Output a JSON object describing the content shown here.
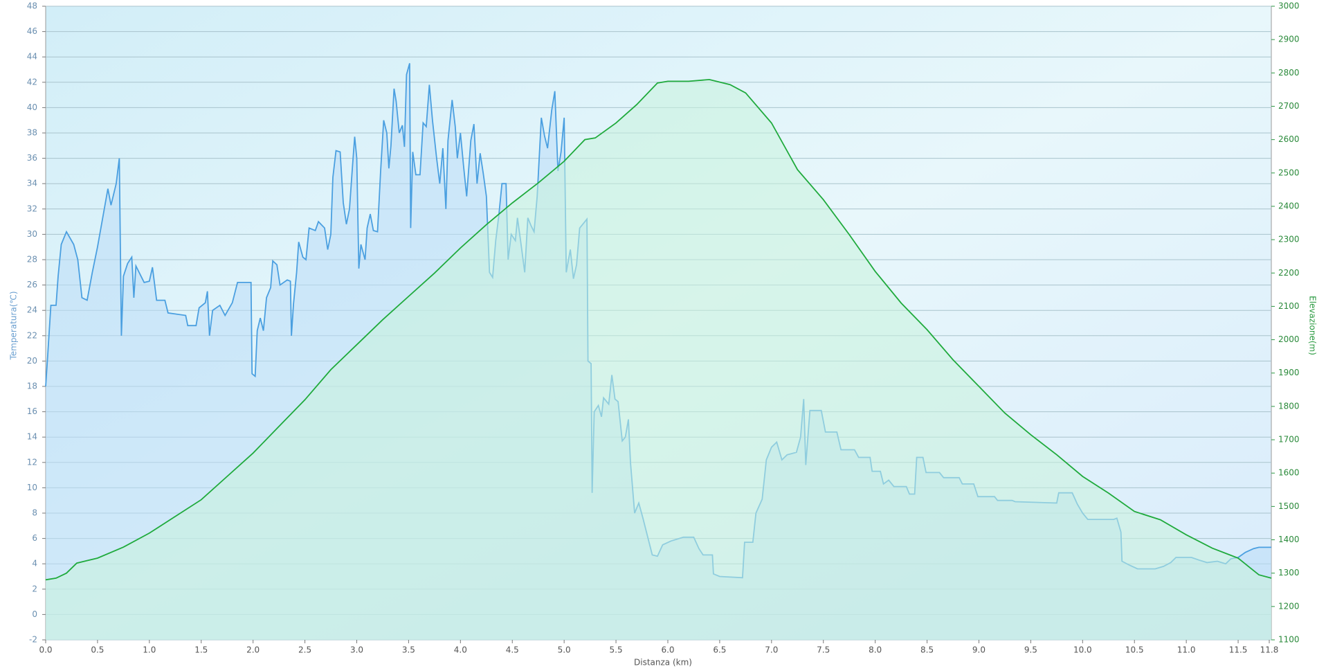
{
  "chart_data": {
    "type": "line",
    "x_label": "Distanza  (km)",
    "y_label": "Temperatura(℃)",
    "y2_label": "Elevazione(m)",
    "xlim": [
      0,
      11.82
    ],
    "xticks": [
      {
        "value": 0,
        "label": "0.0"
      },
      0.5,
      {
        "value": 1,
        "label": "1.0"
      },
      1.5,
      {
        "value": 2,
        "label": "2.0"
      },
      2.5,
      {
        "value": 3,
        "label": "3.0"
      },
      3.5,
      {
        "value": 4,
        "label": "4.0"
      },
      4.5,
      {
        "value": 5,
        "label": "5.0"
      },
      5.5,
      {
        "value": 6,
        "label": "6.0"
      },
      6.5,
      {
        "value": 7,
        "label": "7.0"
      },
      7.5,
      {
        "value": 8,
        "label": "8.0"
      },
      8.5,
      {
        "value": 9,
        "label": "9.0"
      },
      9.5,
      {
        "value": 10,
        "label": "10.0"
      },
      10.5,
      {
        "value": 11,
        "label": "11.0"
      },
      11.5,
      11.8
    ],
    "ylim": [
      -2,
      48
    ],
    "yticks": [
      -2,
      0,
      2,
      4,
      6,
      8,
      10,
      12,
      14,
      16,
      18,
      20,
      22,
      24,
      26,
      28,
      30,
      32,
      34,
      36,
      38,
      40,
      42,
      44,
      46,
      48
    ],
    "y2lim": [
      1100,
      3000
    ],
    "y2ticks": [
      1100,
      1200,
      1300,
      1400,
      1500,
      1600,
      1700,
      1800,
      1900,
      2000,
      2100,
      2200,
      2300,
      2400,
      2500,
      2600,
      2700,
      2800,
      2900,
      3000
    ],
    "grid": true,
    "series": [
      {
        "color": "#4a9fe0",
        "fill": "#bcdcf7",
        "x": [
          0,
          0.02,
          0.05,
          0.1,
          0.12,
          0.15,
          0.2,
          0.27,
          0.31,
          0.35,
          0.4,
          0.45,
          0.5,
          0.55,
          0.6,
          0.63,
          0.68,
          0.71,
          0.73,
          0.75,
          0.79,
          0.83,
          0.85,
          0.87,
          0.95,
          1.0,
          1.03,
          1.07,
          1.15,
          1.18,
          1.35,
          1.37,
          1.45,
          1.48,
          1.54,
          1.56,
          1.58,
          1.61,
          1.68,
          1.73,
          1.8,
          1.85,
          1.98,
          1.99,
          2.02,
          2.04,
          2.07,
          2.1,
          2.13,
          2.17,
          2.19,
          2.23,
          2.26,
          2.33,
          2.36,
          2.37,
          2.39,
          2.42,
          2.44,
          2.48,
          2.51,
          2.54,
          2.6,
          2.63,
          2.69,
          2.72,
          2.75,
          2.77,
          2.8,
          2.84,
          2.87,
          2.9,
          2.93,
          2.96,
          2.98,
          3.0,
          3.02,
          3.04,
          3.08,
          3.1,
          3.13,
          3.16,
          3.2,
          3.23,
          3.26,
          3.29,
          3.31,
          3.33,
          3.36,
          3.38,
          3.41,
          3.44,
          3.46,
          3.48,
          3.51,
          3.52,
          3.54,
          3.57,
          3.61,
          3.64,
          3.67,
          3.7,
          3.73,
          3.77,
          3.8,
          3.83,
          3.86,
          3.88,
          3.92,
          3.95,
          3.97,
          4.0,
          4.03,
          4.06,
          4.1,
          4.13,
          4.16,
          4.19,
          4.22,
          4.25,
          4.28,
          4.31,
          4.34,
          4.37,
          4.4,
          4.44,
          4.46,
          4.49,
          4.53,
          4.55,
          4.58,
          4.62,
          4.65,
          4.68,
          4.71,
          4.74,
          4.78,
          4.81,
          4.84,
          4.88,
          4.91,
          4.94,
          4.97,
          5.0,
          5.02,
          5.06,
          5.09,
          5.12,
          5.15,
          5.18,
          5.22,
          5.23,
          5.26,
          5.27,
          5.29,
          5.33,
          5.36,
          5.38,
          5.43,
          5.46,
          5.49,
          5.52,
          5.56,
          5.59,
          5.62,
          5.64,
          5.68,
          5.72,
          5.76,
          5.85,
          5.9,
          5.95,
          6.03,
          6.15,
          6.25,
          6.3,
          6.34,
          6.43,
          6.44,
          6.5,
          6.72,
          6.74,
          6.82,
          6.85,
          6.91,
          6.95,
          7.0,
          7.05,
          7.1,
          7.15,
          7.24,
          7.28,
          7.31,
          7.33,
          7.37,
          7.48,
          7.52,
          7.63,
          7.67,
          7.8,
          7.84,
          7.95,
          7.97,
          8.05,
          8.08,
          8.13,
          8.18,
          8.3,
          8.33,
          8.38,
          8.4,
          8.46,
          8.49,
          8.62,
          8.66,
          8.81,
          8.84,
          8.95,
          8.99,
          9.15,
          9.18,
          9.32,
          9.35,
          9.75,
          9.77,
          9.9,
          9.95,
          10.0,
          10.05,
          10.3,
          10.33,
          10.37,
          10.38,
          10.45,
          10.53,
          10.7,
          10.78,
          10.85,
          10.9,
          11.05,
          11.12,
          11.2,
          11.3,
          11.38,
          11.43,
          11.5,
          11.57,
          11.65,
          11.7,
          11.82
        ],
        "values": [
          18,
          20.5,
          24.4,
          24.4,
          26.7,
          29.2,
          30.2,
          29.2,
          28,
          25,
          24.8,
          27,
          29,
          31.3,
          33.6,
          32.3,
          34,
          36,
          22,
          26.7,
          27.7,
          28.2,
          25,
          27.5,
          26.2,
          26.3,
          27.4,
          24.8,
          24.8,
          23.8,
          23.6,
          22.8,
          22.8,
          24.2,
          24.6,
          25.5,
          22,
          24,
          24.4,
          23.6,
          24.6,
          26.2,
          26.2,
          19,
          18.8,
          22.4,
          23.4,
          22.4,
          25,
          25.8,
          27.9,
          27.6,
          26,
          26.4,
          26.3,
          22,
          24.5,
          27,
          29.4,
          28.2,
          28,
          30.5,
          30.3,
          31,
          30.5,
          28.8,
          30,
          34.5,
          36.6,
          36.5,
          32.5,
          30.8,
          32,
          35.5,
          37.7,
          36,
          27.3,
          29.2,
          28,
          30.5,
          31.6,
          30.3,
          30.2,
          35,
          39,
          38,
          35.2,
          37,
          41.5,
          40.5,
          38,
          38.6,
          36.9,
          42.6,
          43.5,
          30.5,
          36.5,
          34.7,
          34.7,
          38.8,
          38.5,
          41.8,
          39,
          36,
          34,
          36.8,
          32,
          37.4,
          40.6,
          38.5,
          36,
          38,
          35.4,
          33,
          37.4,
          38.7,
          34,
          36.4,
          34.8,
          33,
          27,
          26.6,
          29.5,
          31.5,
          34,
          34,
          28,
          30,
          29.5,
          31.3,
          29.5,
          27,
          31.3,
          30.7,
          30.2,
          33,
          39.2,
          37.8,
          36.8,
          39.8,
          41.3,
          35,
          36.5,
          39.2,
          27,
          28.8,
          26.5,
          27.6,
          30.5,
          30.8,
          31.2,
          20,
          19.8,
          9.6,
          16,
          16.5,
          15.6,
          17.1,
          16.6,
          18.9,
          17,
          16.8,
          13.7,
          14,
          15.4,
          12,
          8,
          8.8,
          7.6,
          4.7,
          4.6,
          5.5,
          5.8,
          6.1,
          6.1,
          5.2,
          4.7,
          4.7,
          3.2,
          3,
          2.9,
          5.7,
          5.7,
          8,
          9.1,
          12.2,
          13.2,
          13.6,
          12.2,
          12.6,
          12.8,
          14,
          17,
          11.8,
          16.1,
          16.1,
          14.4,
          14.4,
          13,
          13,
          12.4,
          12.4,
          11.3,
          11.3,
          10.3,
          10.6,
          10.1,
          10.1,
          9.5,
          9.5,
          12.4,
          12.4,
          11.2,
          11.2,
          10.8,
          10.8,
          10.3,
          10.3,
          9.3,
          9.3,
          9,
          9,
          8.9,
          8.8,
          9.6,
          9.6,
          8.7,
          8,
          7.5,
          7.5,
          7.6,
          6.5,
          4.2,
          3.9,
          3.6,
          3.6,
          3.8,
          4.1,
          4.5,
          4.5,
          4.3,
          4.1,
          4.2,
          4,
          4.4,
          4.5,
          4.9,
          5.2,
          5.3,
          5.3
        ]
      },
      {
        "color": "#1faa3c",
        "fill": "#c9f2dc",
        "axis": "y2",
        "x": [
          0,
          0.1,
          0.2,
          0.3,
          0.5,
          0.75,
          1.0,
          1.25,
          1.5,
          1.75,
          2.0,
          2.25,
          2.5,
          2.75,
          3.0,
          3.25,
          3.5,
          3.75,
          4.0,
          4.25,
          4.5,
          4.75,
          5.0,
          5.2,
          5.3,
          5.5,
          5.7,
          5.9,
          6.0,
          6.2,
          6.4,
          6.6,
          6.75,
          7.0,
          7.25,
          7.5,
          7.75,
          8.0,
          8.25,
          8.5,
          8.75,
          9.0,
          9.25,
          9.5,
          9.75,
          10.0,
          10.25,
          10.5,
          10.75,
          11.0,
          11.25,
          11.5,
          11.6,
          11.7,
          11.82
        ],
        "values": [
          1280,
          1285,
          1300,
          1330,
          1345,
          1378,
          1420,
          1470,
          1520,
          1590,
          1660,
          1740,
          1820,
          1910,
          1985,
          2060,
          2130,
          2200,
          2275,
          2345,
          2410,
          2470,
          2535,
          2600,
          2605,
          2650,
          2705,
          2770,
          2775,
          2775,
          2780,
          2765,
          2740,
          2650,
          2510,
          2420,
          2315,
          2205,
          2110,
          2030,
          1940,
          1860,
          1780,
          1715,
          1655,
          1590,
          1540,
          1485,
          1460,
          1415,
          1375,
          1345,
          1320,
          1295,
          1285
        ]
      }
    ]
  }
}
